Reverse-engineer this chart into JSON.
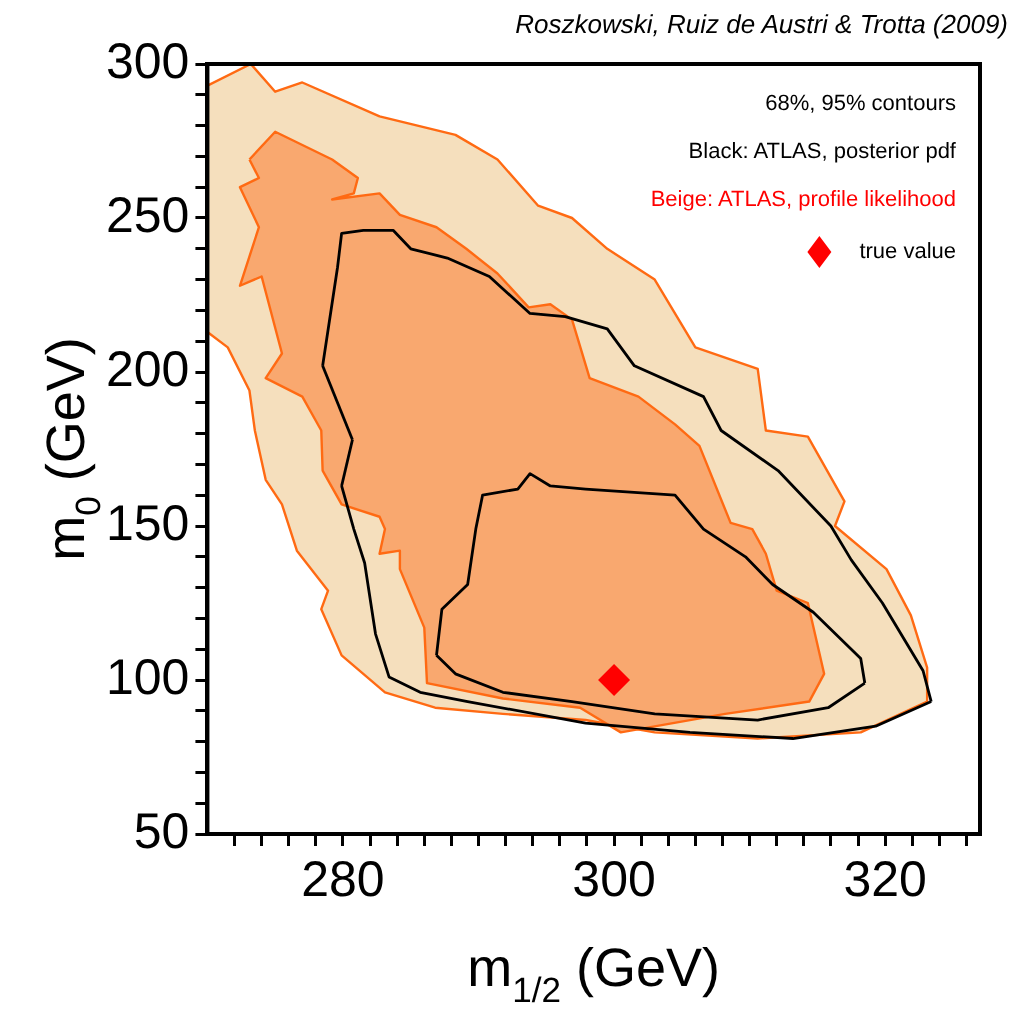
{
  "chart_data": {
    "type": "line",
    "xlabel": "m$_{1/2}$ (GeV)",
    "ylabel": "m$_{0}$ (GeV)",
    "annotations": [
      "Roszkowski, Ruiz de Austri & Trotta (2009)",
      "68%, 95% contours",
      "Black: ATLAS, posterior pdf",
      "Beige: ATLAS, profile likelihood"
    ],
    "xlim": [
      270,
      327
    ],
    "ylim": [
      50,
      300
    ],
    "xticks": [
      {
        "value": 272,
        "label": null
      },
      {
        "value": 274,
        "label": null
      },
      {
        "value": 276,
        "label": null
      },
      {
        "value": 278,
        "label": null
      },
      280,
      {
        "value": 282,
        "label": null
      },
      {
        "value": 284,
        "label": null
      },
      {
        "value": 286,
        "label": null
      },
      {
        "value": 288,
        "label": null
      },
      {
        "value": 290,
        "label": null
      },
      {
        "value": 292,
        "label": null
      },
      {
        "value": 294,
        "label": null
      },
      {
        "value": 296,
        "label": null
      },
      {
        "value": 298,
        "label": null
      },
      300,
      {
        "value": 302,
        "label": null
      },
      {
        "value": 304,
        "label": null
      },
      {
        "value": 306,
        "label": null
      },
      {
        "value": 308,
        "label": null
      },
      {
        "value": 310,
        "label": null
      },
      {
        "value": 312,
        "label": null
      },
      {
        "value": 314,
        "label": null
      },
      {
        "value": 316,
        "label": null
      },
      {
        "value": 318,
        "label": null
      },
      320,
      {
        "value": 322,
        "label": null
      },
      {
        "value": 324,
        "label": null
      },
      {
        "value": 326,
        "label": null
      }
    ],
    "yticks": [
      50,
      {
        "value": 60,
        "label": null
      },
      {
        "value": 70,
        "label": null
      },
      {
        "value": 80,
        "label": null
      },
      {
        "value": 90,
        "label": null
      },
      100,
      {
        "value": 110,
        "label": null
      },
      {
        "value": 120,
        "label": null
      },
      {
        "value": 130,
        "label": null
      },
      {
        "value": 140,
        "label": null
      },
      150,
      {
        "value": 160,
        "label": null
      },
      {
        "value": 170,
        "label": null
      },
      {
        "value": 180,
        "label": null
      },
      {
        "value": 190,
        "label": null
      },
      200,
      {
        "value": 210,
        "label": null
      },
      {
        "value": 220,
        "label": null
      },
      {
        "value": 230,
        "label": null
      },
      {
        "value": 240,
        "label": null
      },
      250,
      {
        "value": 260,
        "label": null
      },
      {
        "value": 270,
        "label": null
      },
      {
        "value": 280,
        "label": null
      },
      {
        "value": 290,
        "label": null
      },
      300
    ],
    "legend": "top right",
    "series": [
      {
        "type": "area",
        "color": "#f5dfbd",
        "x": [
          270,
          273.2,
          275,
          277,
          282.7,
          288.3,
          291.4,
          294.4,
          296.9,
          299.5,
          303,
          306,
          310.6,
          311.2,
          314.3,
          317,
          316.3,
          320.1,
          321.9,
          323.1,
          323.1,
          318.2,
          310.6,
          303,
          297.9,
          291.8,
          286.8,
          283.1,
          279.9,
          278.4,
          278.9,
          276.6,
          275.5,
          274.3,
          273.5,
          273.1,
          271.5,
          270,
          270
        ],
        "values": [
          293,
          300,
          291,
          294,
          283,
          277,
          269,
          254,
          250,
          240,
          230,
          208,
          201,
          181,
          179,
          158,
          150,
          136,
          121,
          104,
          93,
          83,
          81,
          83,
          87,
          89,
          91,
          96,
          108,
          123,
          129,
          142,
          157,
          165,
          181,
          194,
          208,
          213,
          293
        ]
      },
      {
        "type": "area",
        "color": "#f9a86f",
        "x": [
          273.1,
          275,
          279.2,
          281.1,
          280.8,
          279.2,
          282.7,
          284.2,
          286.9,
          289.1,
          291.4,
          293.7,
          295.3,
          296.9,
          298.2,
          301.8,
          304.5,
          306.3,
          308.6,
          310.2,
          311.2,
          312,
          314.3,
          315.5,
          314.4,
          308.2,
          300.5,
          297.5,
          291.8,
          286.2,
          286,
          284.2,
          284.2,
          282.7,
          283.1,
          282.7,
          279.9,
          278.5,
          278.4,
          277,
          274.3,
          275.5,
          274,
          272.4,
          273.8,
          272.4,
          273.8,
          273.1
        ],
        "values": [
          269,
          278,
          269,
          263,
          258,
          256,
          258,
          251,
          247,
          240,
          232,
          221,
          222,
          217,
          198,
          192,
          183,
          176,
          151,
          149,
          141,
          129,
          125,
          102,
          93,
          89,
          83,
          91,
          94,
          99,
          117,
          136,
          142,
          141,
          149,
          153,
          157,
          168,
          181,
          192,
          198,
          206,
          231,
          228,
          247,
          260,
          263,
          269
        ]
      },
      {
        "color": "#000000",
        "x": [
          278.5,
          279.6,
          279.9,
          281.5,
          283.7,
          285,
          287.7,
          290.8,
          293.8,
          296.4,
          299.5,
          301.5,
          306.6,
          307.9,
          312.1,
          316,
          317.5,
          319.8,
          322.8,
          323.4
        ],
        "values": [
          202,
          234,
          245,
          246,
          246,
          240,
          237,
          231,
          219,
          218,
          214,
          202,
          192,
          181,
          168,
          150,
          139,
          125,
          103,
          93
        ]
      },
      {
        "color": "#000000",
        "x": [
          279.9,
          280.8,
          281.6,
          282.4,
          283.4,
          285.7,
          289.2,
          297.9,
          305.6,
          313.2,
          319.3,
          323.4
        ],
        "values": [
          163,
          149,
          138,
          115,
          101,
          96,
          93,
          86,
          83,
          81,
          85,
          93
        ]
      },
      {
        "color": "#000000",
        "x": [
          279.9,
          280.7
        ],
        "values": [
          163,
          178
        ]
      },
      {
        "color": "#000000",
        "x": [
          278.5,
          280.7
        ],
        "values": [
          202,
          178
        ]
      },
      {
        "color": "#000000",
        "x": [
          286.9,
          287.3,
          289.2,
          289.8,
          290.3,
          292.9,
          293.8,
          295.3,
          297.9,
          304.5,
          306.6,
          309.7,
          311.7,
          314.7,
          318.2,
          318.5
        ],
        "values": [
          108,
          123,
          131,
          149,
          160,
          162,
          167,
          163,
          162,
          160,
          149,
          140,
          131,
          122,
          107,
          99
        ]
      },
      {
        "color": "#000000",
        "x": [
          286.9,
          288.3,
          291.8,
          296.9,
          303,
          310.6,
          315.8,
          318.5
        ],
        "values": [
          108,
          102,
          96,
          93,
          89,
          87,
          91,
          99
        ]
      },
      {
        "type": "scatter",
        "name": "true value",
        "color": "#ff0000",
        "marker": "diamond",
        "x": [
          300
        ],
        "values": [
          100
        ]
      }
    ]
  }
}
